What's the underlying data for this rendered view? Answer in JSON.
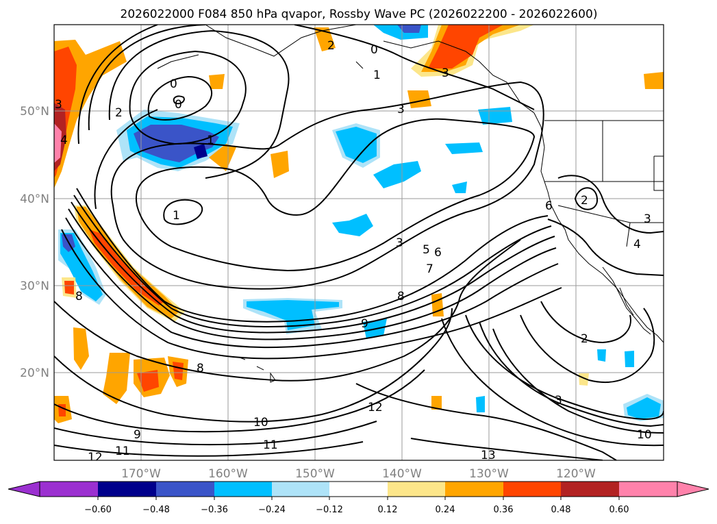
{
  "title": "2026022000 F084 850 hPa qvapor, Rossby Wave PC (2026022200 - 2026022600)",
  "map": {
    "lon_labels": [
      "170°W",
      "160°W",
      "150°W",
      "140°W",
      "130°W",
      "120°W"
    ],
    "lat_labels": [
      "50°N",
      "40°N",
      "30°N",
      "20°N"
    ],
    "contour_labels": [
      "0",
      "0",
      "1",
      "1",
      "1",
      "2",
      "2",
      "3",
      "3",
      "3",
      "3",
      "3",
      "5",
      "6",
      "6",
      "7",
      "8",
      "8",
      "8",
      "9",
      "9",
      "10",
      "10",
      "11",
      "11",
      "12",
      "12",
      "13",
      "4",
      "4",
      "2",
      "3",
      "2",
      "0"
    ]
  },
  "colorbar": {
    "tick_labels": [
      "−0.60",
      "−0.48",
      "−0.36",
      "−0.24",
      "−0.12",
      "0.12",
      "0.24",
      "0.36",
      "0.48",
      "0.60"
    ],
    "colors": [
      "#9b30d0",
      "#00008b",
      "#3a54c8",
      "#00bfff",
      "#aee3f8",
      "#ffffff",
      "#fce68a",
      "#ffa500",
      "#ff4500",
      "#b22222",
      "#ff82ab"
    ]
  }
}
